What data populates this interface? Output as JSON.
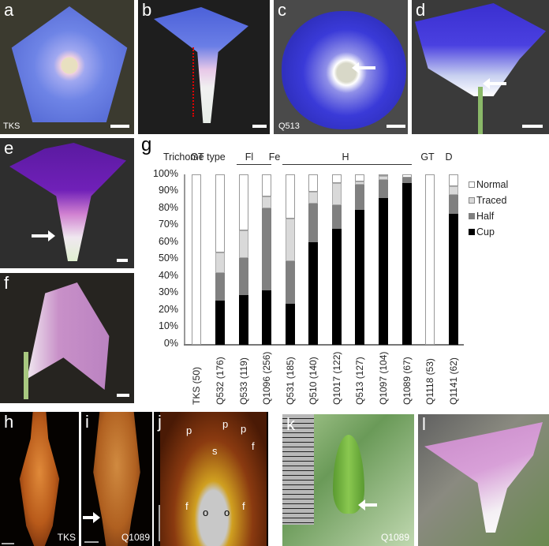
{
  "panels": {
    "a": {
      "label": "a",
      "caption": "TKS"
    },
    "b": {
      "label": "b"
    },
    "c": {
      "label": "c",
      "caption": "Q513"
    },
    "d": {
      "label": "d"
    },
    "e": {
      "label": "e"
    },
    "f": {
      "label": "f"
    },
    "g": {
      "label": "g"
    },
    "h": {
      "label": "h",
      "caption": "TKS"
    },
    "i": {
      "label": "i",
      "caption": "Q1089"
    },
    "j": {
      "label": "j",
      "annotations": [
        "p",
        "p",
        "p",
        "s",
        "f",
        "f",
        "f",
        "o",
        "o"
      ]
    },
    "k": {
      "label": "k",
      "caption": "Q1089"
    },
    "l": {
      "label": "l"
    }
  },
  "chart_data": {
    "type": "bar",
    "stacked": true,
    "title": "",
    "xlabel": "",
    "ylabel": "",
    "ylim": [
      0,
      100
    ],
    "yticks": [
      "0%",
      "10%",
      "20%",
      "30%",
      "40%",
      "50%",
      "60%",
      "70%",
      "80%",
      "90%",
      "100%"
    ],
    "row_header": "Trichome type",
    "groups": [
      {
        "label": "GT",
        "categories": [
          "TKS (50)"
        ],
        "underline": false
      },
      {
        "label": "Fl",
        "categories": [
          "Q532 (176)"
        ],
        "underline": false
      },
      {
        "label": "Fe",
        "categories": [
          "Q533 (119)",
          "Q1096 (256)"
        ],
        "underline": true
      },
      {
        "label": "H",
        "categories": [
          "Q531 (185)",
          "Q510 (140)",
          "Q1017 (122)",
          "Q513 (127)",
          "Q1097 (104)",
          "Q1089 (67)"
        ],
        "underline": true
      },
      {
        "label": "GT",
        "categories": [
          "Q1118 (53)"
        ],
        "underline": false
      },
      {
        "label": "D",
        "categories": [
          "Q1141 (62)"
        ],
        "underline": false
      }
    ],
    "categories": [
      "TKS (50)",
      "Q532 (176)",
      "Q533 (119)",
      "Q1096 (256)",
      "Q531 (185)",
      "Q510 (140)",
      "Q1017 (122)",
      "Q513 (127)",
      "Q1097 (104)",
      "Q1089 (67)",
      "Q1118 (53)",
      "Q1141 (62)"
    ],
    "series": [
      {
        "name": "Cup",
        "color": "#000000",
        "values": [
          0,
          26,
          29,
          32,
          24,
          60,
          68,
          79,
          86,
          95,
          0,
          77
        ]
      },
      {
        "name": "Half",
        "color": "#808080",
        "values": [
          0,
          16,
          22,
          48,
          25,
          23,
          14,
          15,
          11,
          3,
          0,
          11
        ]
      },
      {
        "name": "Traced",
        "color": "#d9d9d9",
        "values": [
          0,
          12,
          16,
          7,
          25,
          7,
          13,
          2,
          2,
          0,
          0,
          5
        ]
      },
      {
        "name": "Normal",
        "color": "#ffffff",
        "values": [
          100,
          46,
          33,
          13,
          26,
          10,
          5,
          4,
          1,
          2,
          100,
          7
        ]
      }
    ],
    "legend": [
      "Normal",
      "Traced",
      "Half",
      "Cup"
    ],
    "legend_position": "right",
    "grid": false
  }
}
